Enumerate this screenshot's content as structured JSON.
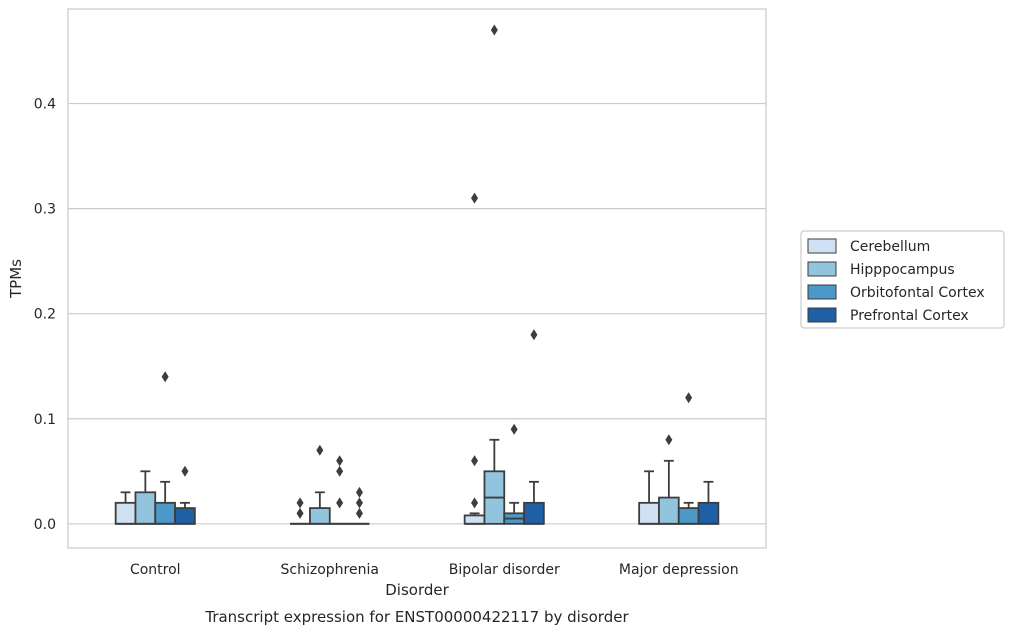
{
  "chart_data": {
    "type": "box",
    "title": "Transcript expression for ENST00000422117 by disorder",
    "xlabel": "Disorder",
    "ylabel": "TPMs",
    "ylim": [
      -0.023,
      0.49
    ],
    "yticks": [
      0.0,
      0.1,
      0.2,
      0.3,
      0.4
    ],
    "ytick_labels": [
      "0.0",
      "0.1",
      "0.2",
      "0.3",
      "0.4"
    ],
    "grid": "horizontal",
    "legend_position": "right",
    "categories": [
      "Control",
      "Schizophrenia",
      "Bipolar disorder",
      "Major depression"
    ],
    "series": [
      {
        "name": "Cerebellum",
        "color": "#cfe1f2",
        "boxes": [
          {
            "q1": 0.0,
            "median": 0.0,
            "q3": 0.02,
            "whisker_low": 0.0,
            "whisker_high": 0.03,
            "outliers": []
          },
          {
            "q1": 0.0,
            "median": 0.0,
            "q3": 0.0,
            "whisker_low": 0.0,
            "whisker_high": 0.0,
            "outliers": [
              0.01,
              0.02
            ]
          },
          {
            "q1": 0.0,
            "median": 0.0,
            "q3": 0.008,
            "whisker_low": 0.0,
            "whisker_high": 0.01,
            "outliers": [
              0.02,
              0.06,
              0.31
            ]
          },
          {
            "q1": 0.0,
            "median": 0.0,
            "q3": 0.02,
            "whisker_low": 0.0,
            "whisker_high": 0.05,
            "outliers": []
          }
        ]
      },
      {
        "name": "Hipppocampus",
        "color": "#93c4de",
        "boxes": [
          {
            "q1": 0.0,
            "median": 0.0,
            "q3": 0.03,
            "whisker_low": 0.0,
            "whisker_high": 0.05,
            "outliers": []
          },
          {
            "q1": 0.0,
            "median": 0.0,
            "q3": 0.015,
            "whisker_low": 0.0,
            "whisker_high": 0.03,
            "outliers": [
              0.07
            ]
          },
          {
            "q1": 0.0,
            "median": 0.025,
            "q3": 0.05,
            "whisker_low": 0.0,
            "whisker_high": 0.08,
            "outliers": [
              0.47
            ]
          },
          {
            "q1": 0.0,
            "median": 0.0,
            "q3": 0.025,
            "whisker_low": 0.0,
            "whisker_high": 0.06,
            "outliers": [
              0.08
            ]
          }
        ]
      },
      {
        "name": "Orbitofontal Cortex",
        "color": "#4b98c9",
        "boxes": [
          {
            "q1": 0.0,
            "median": 0.0,
            "q3": 0.02,
            "whisker_low": 0.0,
            "whisker_high": 0.04,
            "outliers": [
              0.14
            ]
          },
          {
            "q1": 0.0,
            "median": 0.0,
            "q3": 0.0,
            "whisker_low": 0.0,
            "whisker_high": 0.0,
            "outliers": [
              0.02,
              0.05,
              0.06
            ]
          },
          {
            "q1": 0.0,
            "median": 0.005,
            "q3": 0.01,
            "whisker_low": 0.0,
            "whisker_high": 0.02,
            "outliers": [
              0.09
            ]
          },
          {
            "q1": 0.0,
            "median": 0.0,
            "q3": 0.015,
            "whisker_low": 0.0,
            "whisker_high": 0.02,
            "outliers": [
              0.12
            ]
          }
        ]
      },
      {
        "name": "Prefrontal Cortex",
        "color": "#1f5fa5",
        "boxes": [
          {
            "q1": 0.0,
            "median": 0.0,
            "q3": 0.015,
            "whisker_low": 0.0,
            "whisker_high": 0.02,
            "outliers": [
              0.05
            ]
          },
          {
            "q1": 0.0,
            "median": 0.0,
            "q3": 0.0,
            "whisker_low": 0.0,
            "whisker_high": 0.0,
            "outliers": [
              0.01,
              0.02,
              0.03
            ]
          },
          {
            "q1": 0.0,
            "median": 0.0,
            "q3": 0.02,
            "whisker_low": 0.0,
            "whisker_high": 0.04,
            "outliers": [
              0.18
            ]
          },
          {
            "q1": 0.0,
            "median": 0.0,
            "q3": 0.02,
            "whisker_low": 0.0,
            "whisker_high": 0.04,
            "outliers": []
          }
        ]
      }
    ]
  }
}
